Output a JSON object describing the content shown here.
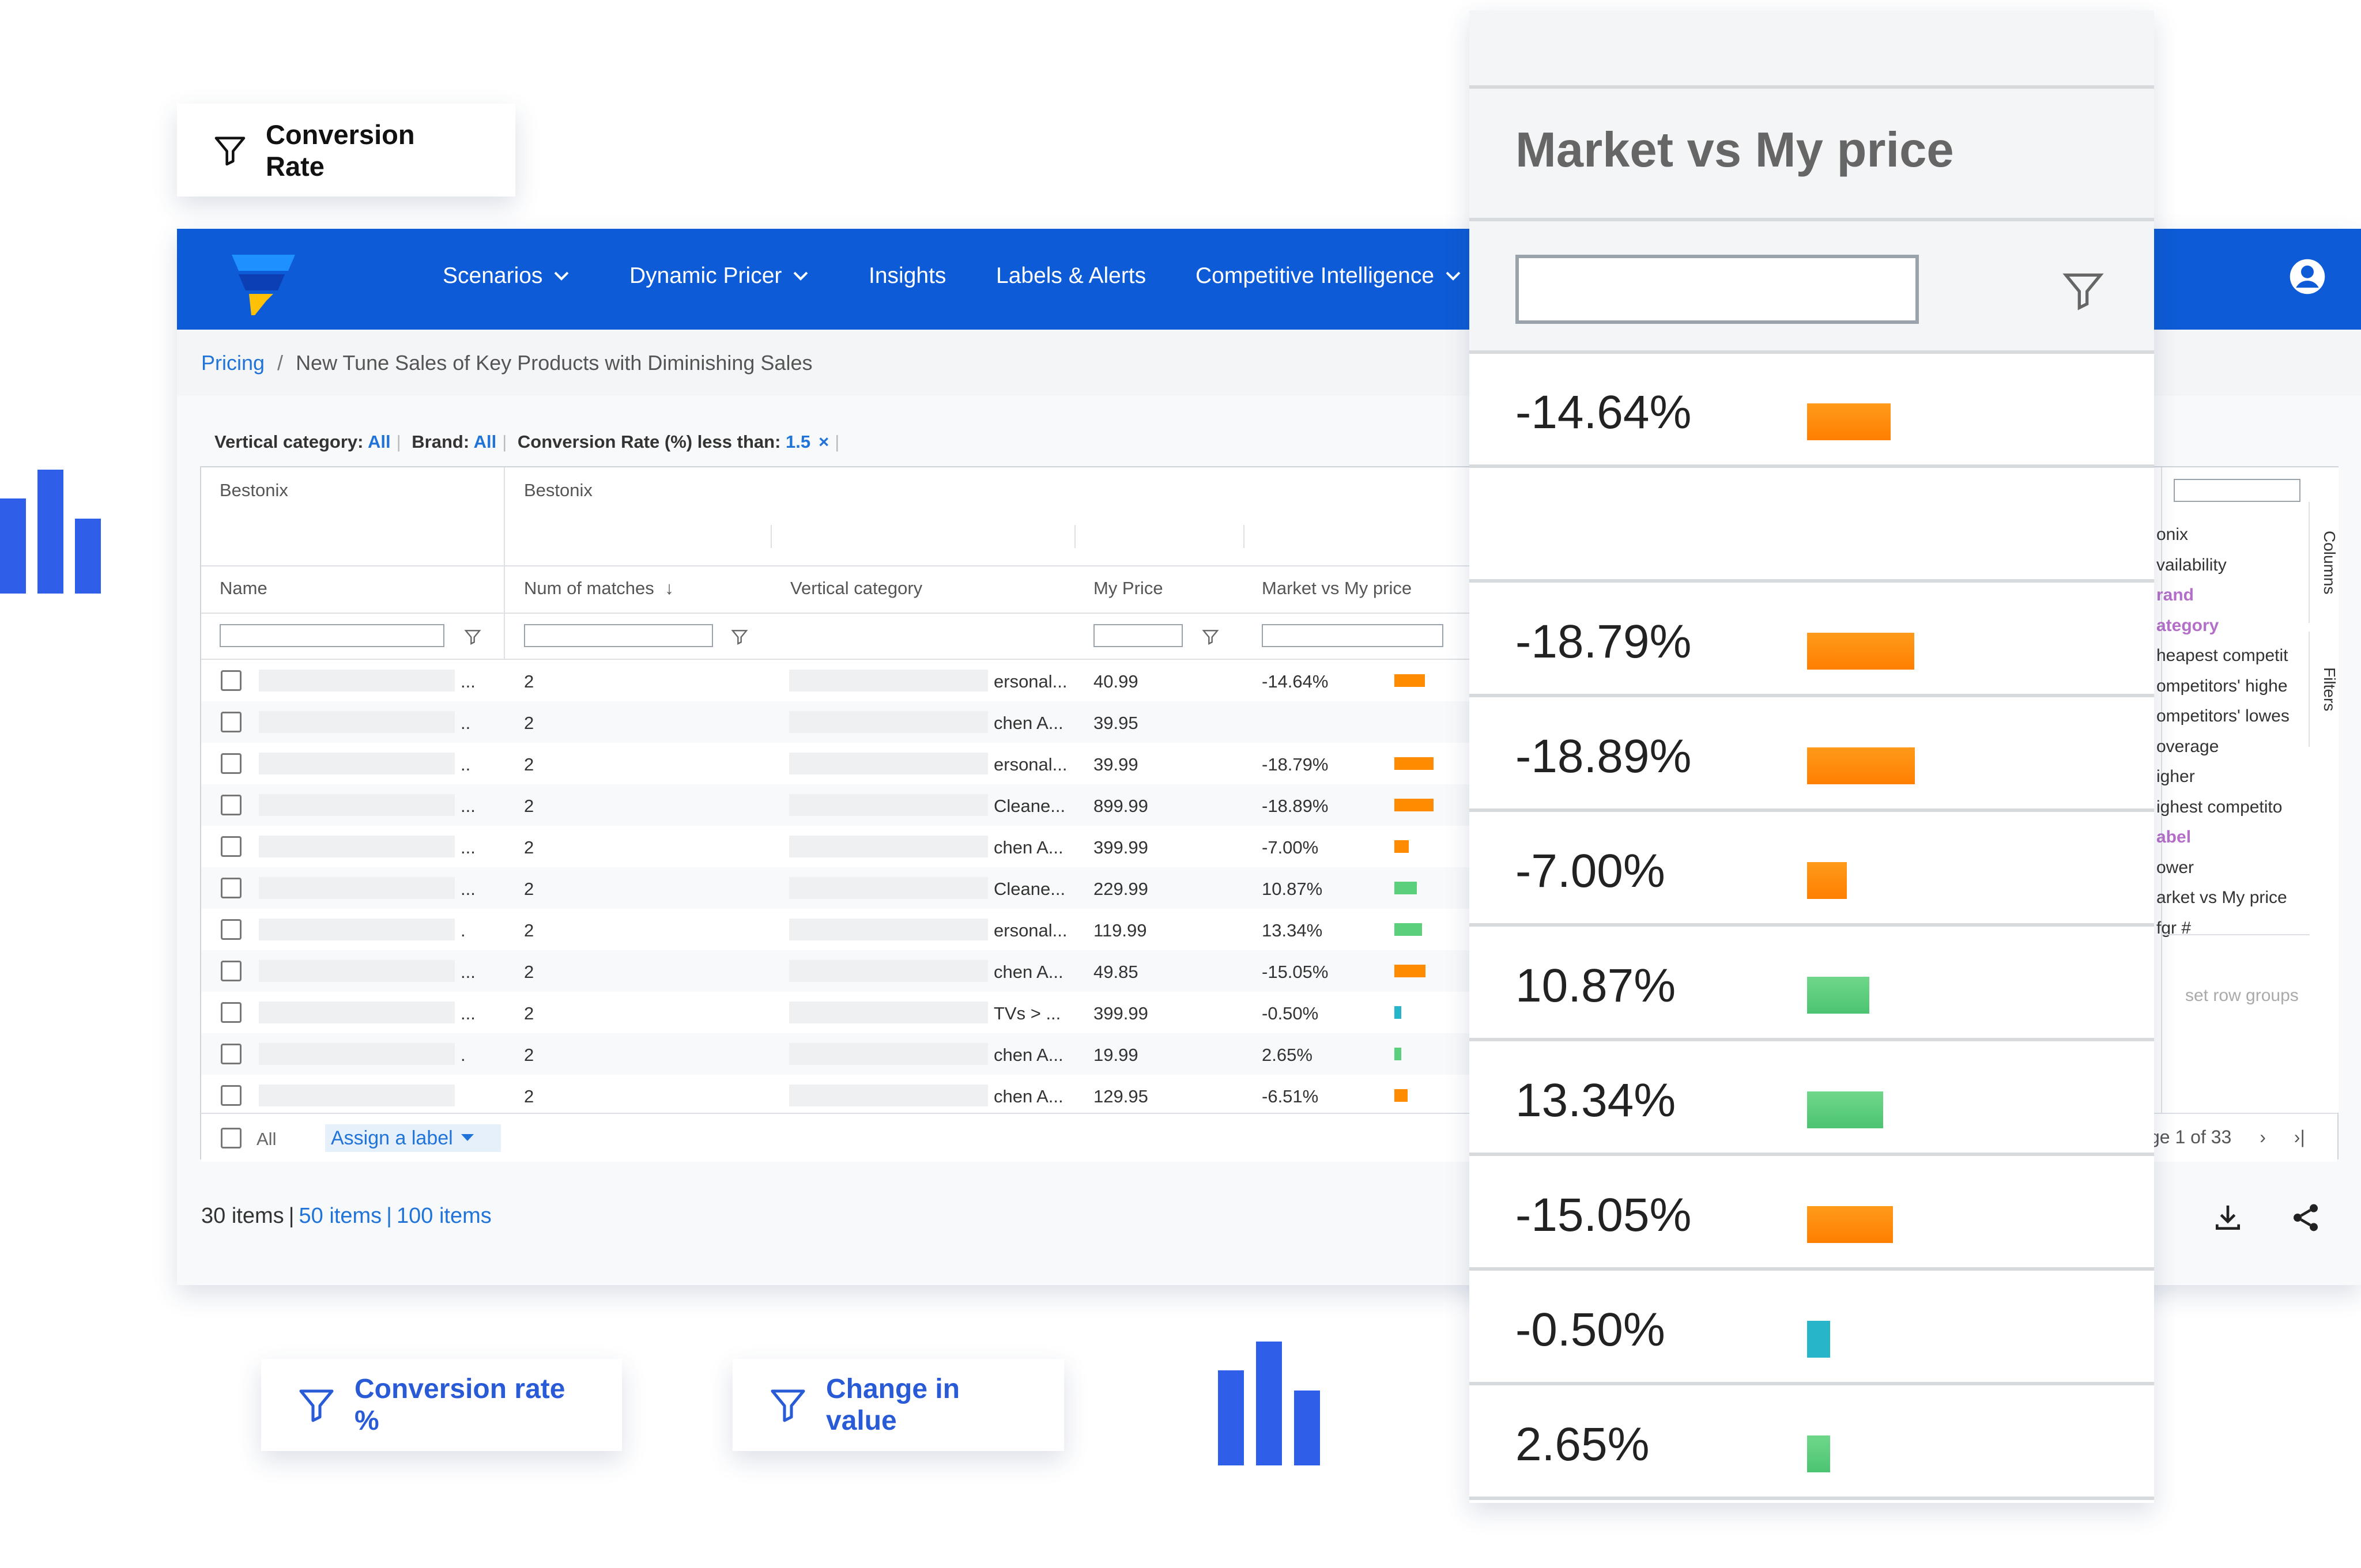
{
  "chips": {
    "conversion_rate": "Conversion Rate",
    "conversion_rate_pct": "Conversion rate %",
    "change_in_value": "Change in value"
  },
  "nav": {
    "items": [
      {
        "label": "Scenarios",
        "dropdown": true
      },
      {
        "label": "Dynamic Pricer",
        "dropdown": true
      },
      {
        "label": "Insights",
        "dropdown": false
      },
      {
        "label": "Labels & Alerts",
        "dropdown": false
      },
      {
        "label": "Competitive Intelligence",
        "dropdown": true
      }
    ],
    "brand_color": "#0d5bd6"
  },
  "breadcrumb": {
    "root": "Pricing",
    "separator": "/",
    "current": "New Tune Sales of Key Products with Diminishing Sales"
  },
  "filters": {
    "vertical_label": "Vertical category:",
    "vertical_value": "All",
    "brand_label": "Brand:",
    "brand_value": "All",
    "conv_label": "Conversion Rate (%) less than:",
    "conv_value": "1.5",
    "clear_icon": "×"
  },
  "grid": {
    "group_headers": [
      "Bestonix",
      "Bestonix"
    ],
    "columns": [
      "Name",
      "Num of matches",
      "Vertical category",
      "My Price",
      "Market vs My price"
    ],
    "sort_icon": "↓",
    "rows": [
      {
        "name_suffix": "...",
        "matches": "2",
        "category": "ersonal...",
        "price": "40.99",
        "mvp": "-14.64%",
        "pct": -14.64
      },
      {
        "name_suffix": "..",
        "matches": "2",
        "category": "chen A...",
        "price": "39.95",
        "mvp": "",
        "pct": null
      },
      {
        "name_suffix": "..",
        "matches": "2",
        "category": "ersonal...",
        "price": "39.99",
        "mvp": "-18.79%",
        "pct": -18.79
      },
      {
        "name_suffix": "...",
        "matches": "2",
        "category": "Cleane...",
        "price": "899.99",
        "mvp": "-18.89%",
        "pct": -18.89
      },
      {
        "name_suffix": "...",
        "matches": "2",
        "category": "chen A...",
        "price": "399.99",
        "mvp": "-7.00%",
        "pct": -7.0
      },
      {
        "name_suffix": "...",
        "matches": "2",
        "category": "Cleane...",
        "price": "229.99",
        "mvp": "10.87%",
        "pct": 10.87
      },
      {
        "name_suffix": ".",
        "matches": "2",
        "category": "ersonal...",
        "price": "119.99",
        "mvp": "13.34%",
        "pct": 13.34
      },
      {
        "name_suffix": "...",
        "matches": "2",
        "category": "chen A...",
        "price": "49.85",
        "mvp": "-15.05%",
        "pct": -15.05
      },
      {
        "name_suffix": "...",
        "matches": "2",
        "category": "TVs > ...",
        "price": "399.99",
        "mvp": "-0.50%",
        "pct": -0.5
      },
      {
        "name_suffix": ".",
        "matches": "2",
        "category": "chen A...",
        "price": "19.99",
        "mvp": "2.65%",
        "pct": 2.65
      },
      {
        "name_suffix": "",
        "matches": "2",
        "category": "chen A...",
        "price": "129.95",
        "mvp": "-6.51%",
        "pct": -6.51
      }
    ],
    "footer": {
      "all_label": "All",
      "assign_label": "Assign a label"
    }
  },
  "side_panel": {
    "items": [
      {
        "label": "onix",
        "highlight": false
      },
      {
        "label": "vailability",
        "highlight": false
      },
      {
        "label": "rand",
        "highlight": true
      },
      {
        "label": "ategory",
        "highlight": true
      },
      {
        "label": "heapest competit",
        "highlight": false
      },
      {
        "label": "ompetitors' highe",
        "highlight": false
      },
      {
        "label": "ompetitors' lowes",
        "highlight": false
      },
      {
        "label": "overage",
        "highlight": false
      },
      {
        "label": "igher",
        "highlight": false
      },
      {
        "label": "ighest competito",
        "highlight": false
      },
      {
        "label": "abel",
        "highlight": true
      },
      {
        "label": "ower",
        "highlight": false
      },
      {
        "label": "arket vs My price",
        "highlight": false
      },
      {
        "label": "fgr #",
        "highlight": false
      }
    ],
    "row_groups": "set row groups",
    "tab_columns": "Columns",
    "tab_filters": "Filters"
  },
  "pager": {
    "text": "ge 1 of 33",
    "next": "›",
    "last": "›|"
  },
  "page_size": {
    "current": "30 items",
    "opt1": "50 items",
    "opt2": "100 items",
    "sep": "|"
  },
  "zoom": {
    "title": "Market vs My price",
    "rows": [
      {
        "label": "-14.64%",
        "pct": -14.64
      },
      {
        "label": "",
        "pct": null
      },
      {
        "label": "-18.79%",
        "pct": -18.79
      },
      {
        "label": "-18.89%",
        "pct": -18.89
      },
      {
        "label": "-7.00%",
        "pct": -7.0
      },
      {
        "label": "10.87%",
        "pct": 10.87
      },
      {
        "label": "13.34%",
        "pct": 13.34
      },
      {
        "label": "-15.05%",
        "pct": -15.05
      },
      {
        "label": "-0.50%",
        "pct": -0.5
      },
      {
        "label": "2.65%",
        "pct": 2.65
      }
    ]
  },
  "colors": {
    "negative_bar": "#ff8c00",
    "positive_bar": "#5ccf7c",
    "small_bar": "#26b5c9",
    "link": "#1f73d9",
    "accent": "#2f5fe8"
  }
}
